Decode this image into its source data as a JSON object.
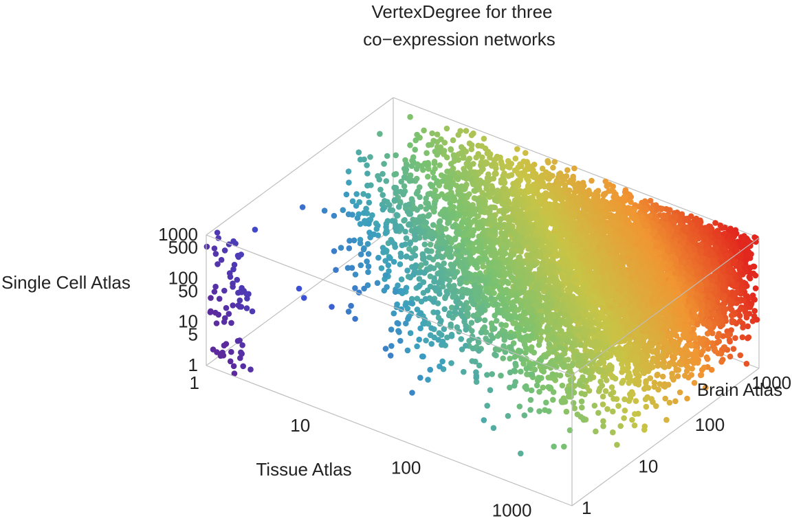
{
  "chart_data": {
    "type": "scatter",
    "dimensions": "3d",
    "title_lines": [
      "VertexDegree for three",
      "co−expression networks"
    ],
    "axes": {
      "x": {
        "label": "Tissue Atlas",
        "scale": "log",
        "range": [
          1,
          2000
        ],
        "ticks": [
          1,
          10,
          100,
          1000
        ],
        "tick_labels": [
          "1",
          "10",
          "100",
          "1000"
        ]
      },
      "y": {
        "label": "Brain Atlas",
        "scale": "log",
        "range": [
          1,
          2000
        ],
        "ticks": [
          1,
          10,
          100,
          1000
        ],
        "tick_labels": [
          "1",
          "10",
          "100",
          "1000"
        ]
      },
      "z": {
        "label": "Single Cell Atlas",
        "scale": "log",
        "range": [
          1,
          1000
        ],
        "ticks": [
          1,
          5,
          10,
          50,
          100,
          500,
          1000
        ],
        "tick_labels": [
          "1",
          "5",
          "10",
          "50",
          "100",
          "500",
          "1000"
        ]
      }
    },
    "color_function": "rainbow by combined degree (purple low → red high)",
    "colors": {
      "low": "#5a2d9c",
      "mid": "#8ec35a",
      "high": "#e8301e",
      "box": "#bdbdbd"
    },
    "point_cloud": {
      "approx_count": 9000,
      "description": "Points concentrated at high Tissue/Brain degrees; sparse purple points at low degrees near the Single Cell axis",
      "samples": [
        {
          "x": 1,
          "y": 1,
          "z": 1
        },
        {
          "x": 1,
          "y": 1,
          "z": 8
        },
        {
          "x": 1,
          "y": 2,
          "z": 500
        },
        {
          "x": 3,
          "y": 2,
          "z": 20
        },
        {
          "x": 5,
          "y": 3,
          "z": 2
        },
        {
          "x": 10,
          "y": 5,
          "z": 50
        },
        {
          "x": 30,
          "y": 20,
          "z": 200
        },
        {
          "x": 100,
          "y": 80,
          "z": 10
        },
        {
          "x": 300,
          "y": 300,
          "z": 300
        },
        {
          "x": 800,
          "y": 1500,
          "z": 800
        },
        {
          "x": 1500,
          "y": 1800,
          "z": 1000
        },
        {
          "x": 1000,
          "y": 2,
          "z": 30
        }
      ]
    },
    "grid": false,
    "box": true
  }
}
